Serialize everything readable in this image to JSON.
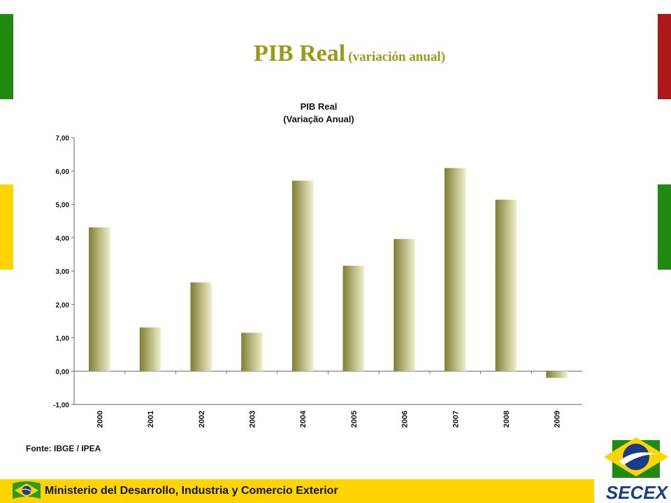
{
  "slide": {
    "title_main": "PIB Real",
    "title_sub": "(variación anual)",
    "footer_text": "Ministerio del Desarrollo, Industria y Comercio Exterior",
    "logo_text": "SECEX",
    "accent_colors": {
      "olive": "#9a9a16",
      "green": "#1f8a10",
      "yellow": "#ffd400",
      "red": "#b01818"
    }
  },
  "chart_data": {
    "type": "bar",
    "title": "PIB Real",
    "subtitle": "(Variação Anual)",
    "categories": [
      "2000",
      "2001",
      "2002",
      "2003",
      "2004",
      "2005",
      "2006",
      "2007",
      "2008",
      "2009"
    ],
    "values": [
      4.31,
      1.31,
      2.66,
      1.15,
      5.71,
      3.16,
      3.96,
      6.09,
      5.14,
      -0.2
    ],
    "ylim": [
      -1,
      7
    ],
    "yticks": [
      "7,00",
      "6,00",
      "5,00",
      "4,00",
      "3,00",
      "2,00",
      "1,00",
      "0,00",
      "-1,00"
    ],
    "ytick_values": [
      7,
      6,
      5,
      4,
      3,
      2,
      1,
      0,
      -1
    ],
    "source": "Fonte: IBGE / IPEA",
    "grid": false,
    "legend": "none"
  }
}
